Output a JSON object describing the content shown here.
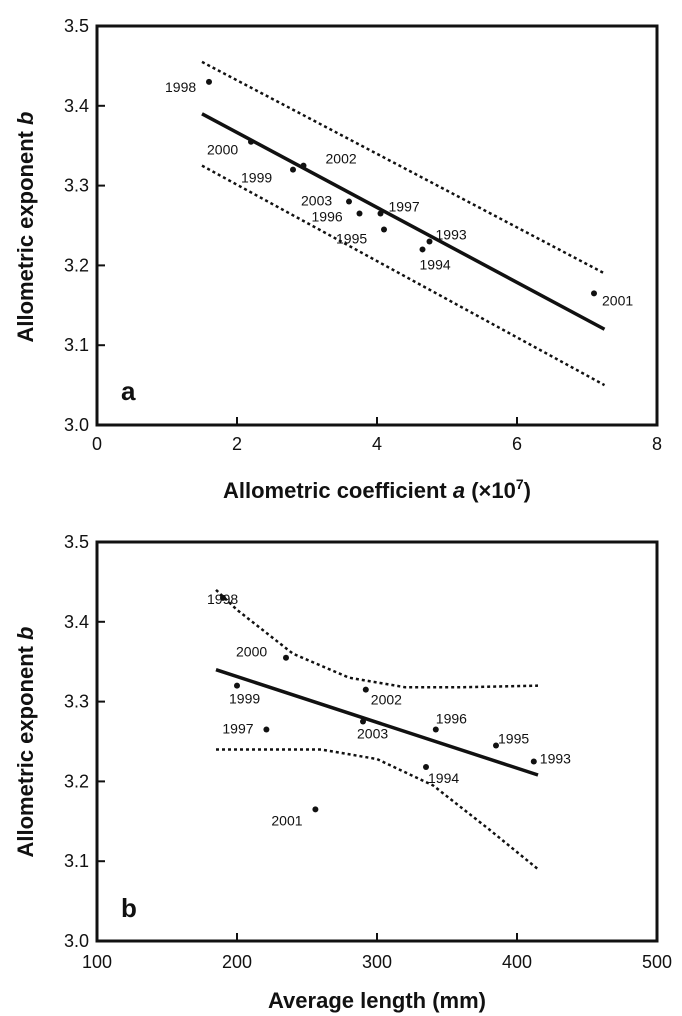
{
  "chart_data": [
    {
      "type": "scatter",
      "panel_label": "a",
      "xlabel_main": "Allometric coefficient ",
      "xlabel_italic": "a",
      "xlabel_tail": " (×10",
      "xlabel_sup": "7",
      "xlabel_close": ")",
      "ylabel_main": "Allometric exponent ",
      "ylabel_italic": "b",
      "xlim": [
        0,
        8
      ],
      "ylim": [
        3.0,
        3.5
      ],
      "xticks": [
        "0",
        "2",
        "4",
        "6",
        "8"
      ],
      "yticks": [
        "3.0",
        "3.1",
        "3.2",
        "3.3",
        "3.4",
        "3.5"
      ],
      "points": [
        {
          "label": "1998",
          "x": 1.6,
          "y": 3.43
        },
        {
          "label": "2000",
          "x": 2.2,
          "y": 3.355
        },
        {
          "label": "1999",
          "x": 2.8,
          "y": 3.32
        },
        {
          "label": "2002",
          "x": 2.95,
          "y": 3.325
        },
        {
          "label": "2003",
          "x": 3.6,
          "y": 3.28
        },
        {
          "label": "1996",
          "x": 3.75,
          "y": 3.265
        },
        {
          "label": "1997",
          "x": 4.05,
          "y": 3.265
        },
        {
          "label": "1995",
          "x": 4.1,
          "y": 3.245
        },
        {
          "label": "1993",
          "x": 4.75,
          "y": 3.23
        },
        {
          "label": "1994",
          "x": 4.65,
          "y": 3.22
        },
        {
          "label": "2001",
          "x": 7.1,
          "y": 3.165
        }
      ],
      "fit_line": [
        [
          1.5,
          3.39
        ],
        [
          7.25,
          3.12
        ]
      ],
      "upper_band": [
        [
          1.5,
          3.455
        ],
        [
          7.25,
          3.19
        ]
      ],
      "lower_band": [
        [
          1.5,
          3.325
        ],
        [
          7.25,
          3.05
        ]
      ]
    },
    {
      "type": "scatter",
      "panel_label": "b",
      "xlabel_main": "Average length (mm)",
      "ylabel_main": "Allometric exponent ",
      "ylabel_italic": "b",
      "xlim": [
        100,
        500
      ],
      "ylim": [
        3.0,
        3.5
      ],
      "xticks": [
        "100",
        "200",
        "300",
        "400",
        "500"
      ],
      "yticks": [
        "3.0",
        "3.1",
        "3.2",
        "3.3",
        "3.4",
        "3.5"
      ],
      "points": [
        {
          "label": "1998",
          "x": 190,
          "y": 3.43
        },
        {
          "label": "2000",
          "x": 235,
          "y": 3.355
        },
        {
          "label": "1999",
          "x": 200,
          "y": 3.32
        },
        {
          "label": "2002",
          "x": 292,
          "y": 3.315
        },
        {
          "label": "2003",
          "x": 290,
          "y": 3.275
        },
        {
          "label": "1997",
          "x": 221,
          "y": 3.265
        },
        {
          "label": "1996",
          "x": 342,
          "y": 3.265
        },
        {
          "label": "1995",
          "x": 385,
          "y": 3.245
        },
        {
          "label": "1993",
          "x": 412,
          "y": 3.225
        },
        {
          "label": "1994",
          "x": 335,
          "y": 3.218
        },
        {
          "label": "2001",
          "x": 256,
          "y": 3.165
        }
      ],
      "fit_line": [
        [
          185,
          3.34
        ],
        [
          415,
          3.208
        ]
      ],
      "upper_band": [
        [
          185,
          3.44
        ],
        [
          200,
          3.415
        ],
        [
          240,
          3.36
        ],
        [
          280,
          3.33
        ],
        [
          320,
          3.318
        ],
        [
          360,
          3.318
        ],
        [
          415,
          3.32
        ]
      ],
      "lower_band": [
        [
          185,
          3.24
        ],
        [
          220,
          3.24
        ],
        [
          260,
          3.24
        ],
        [
          300,
          3.228
        ],
        [
          340,
          3.195
        ],
        [
          380,
          3.14
        ],
        [
          415,
          3.09
        ]
      ]
    }
  ]
}
